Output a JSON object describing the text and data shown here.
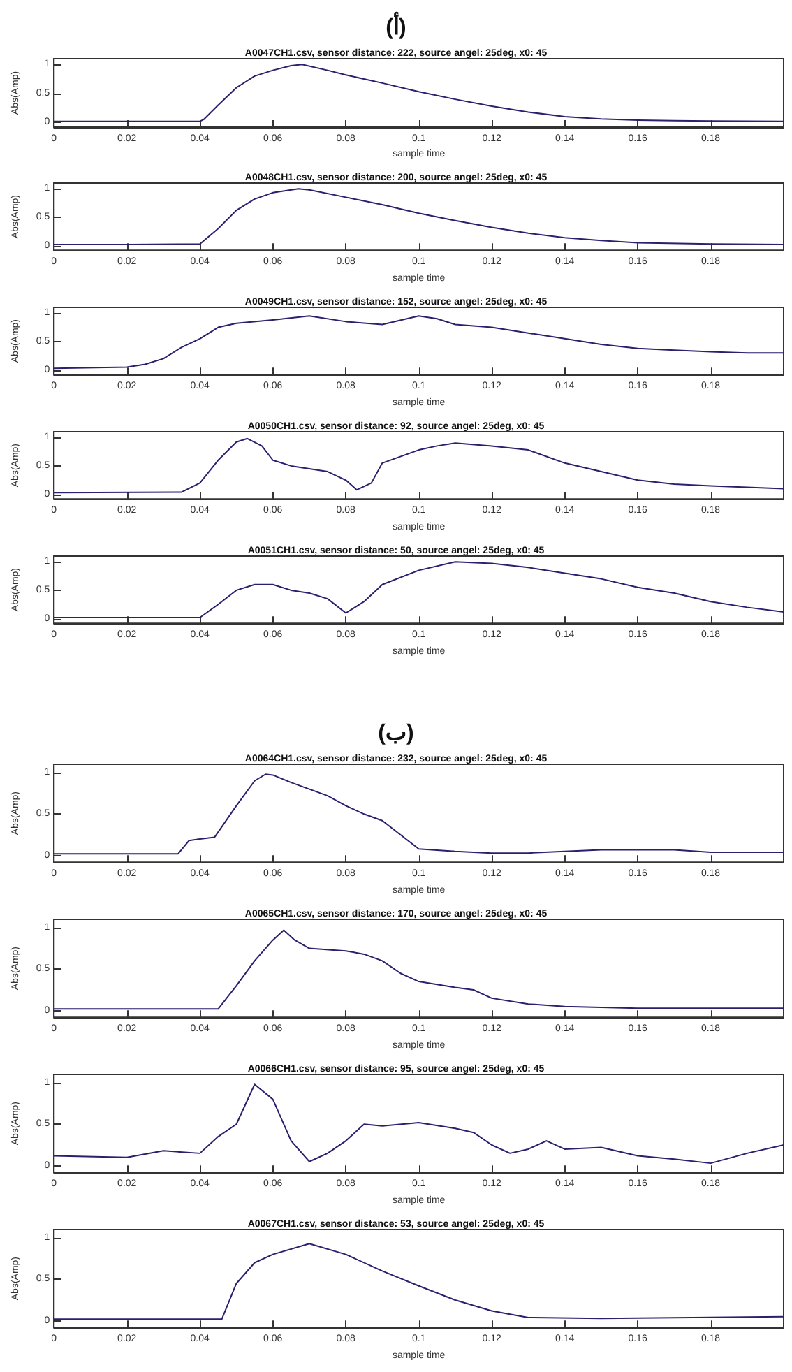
{
  "chart_data": [
    {
      "type": "line",
      "title": "A0047CH1.csv, sensor distance: 222, source angel: 25deg, x0: 45",
      "xlabel": "sample time",
      "ylabel": "Abs(Amp)",
      "annotations": [
        "(أ)"
      ],
      "xlim": [
        0,
        0.2
      ],
      "xticks": [
        0,
        0.02,
        0.04,
        0.06,
        0.08,
        0.1,
        0.12,
        0.14,
        0.16,
        0.18
      ],
      "ylim": [
        -0.08,
        1.1
      ],
      "yticks": [
        0,
        0.5,
        1
      ],
      "grid": false,
      "x": [
        0,
        0.02,
        0.04,
        0.041,
        0.045,
        0.05,
        0.055,
        0.06,
        0.065,
        0.068,
        0.075,
        0.08,
        0.09,
        0.1,
        0.11,
        0.12,
        0.13,
        0.14,
        0.15,
        0.16,
        0.17,
        0.2
      ],
      "series": [
        {
          "color": "#2b1f6e",
          "values": [
            0.02,
            0.02,
            0.02,
            0.05,
            0.3,
            0.6,
            0.8,
            0.9,
            0.98,
            1.0,
            0.9,
            0.82,
            0.68,
            0.53,
            0.4,
            0.28,
            0.18,
            0.1,
            0.06,
            0.04,
            0.03,
            0.02
          ]
        }
      ]
    },
    {
      "type": "line",
      "title": "A0048CH1.csv, sensor distance: 200, source angel: 25deg, x0: 45",
      "xlabel": "sample time",
      "ylabel": "Abs(Amp)",
      "xlim": [
        0,
        0.2
      ],
      "xticks": [
        0,
        0.02,
        0.04,
        0.06,
        0.08,
        0.1,
        0.12,
        0.14,
        0.16,
        0.18
      ],
      "ylim": [
        -0.08,
        1.1
      ],
      "yticks": [
        0,
        0.5,
        1
      ],
      "grid": false,
      "x": [
        0,
        0.02,
        0.04,
        0.045,
        0.05,
        0.055,
        0.06,
        0.067,
        0.07,
        0.08,
        0.09,
        0.1,
        0.11,
        0.12,
        0.13,
        0.14,
        0.15,
        0.16,
        0.18,
        0.2
      ],
      "series": [
        {
          "color": "#2b1f6e",
          "values": [
            0.02,
            0.02,
            0.03,
            0.3,
            0.62,
            0.82,
            0.93,
            1.0,
            0.98,
            0.85,
            0.72,
            0.57,
            0.44,
            0.32,
            0.22,
            0.14,
            0.09,
            0.05,
            0.03,
            0.02
          ]
        }
      ]
    },
    {
      "type": "line",
      "title": "A0049CH1.csv, sensor distance: 152, source angel: 25deg, x0: 45",
      "xlabel": "sample time",
      "ylabel": "Abs(Amp)",
      "xlim": [
        0,
        0.2
      ],
      "xticks": [
        0,
        0.02,
        0.04,
        0.06,
        0.08,
        0.1,
        0.12,
        0.14,
        0.16,
        0.18
      ],
      "ylim": [
        -0.08,
        1.1
      ],
      "yticks": [
        0,
        0.5,
        1
      ],
      "grid": false,
      "x": [
        0,
        0.02,
        0.025,
        0.03,
        0.035,
        0.04,
        0.045,
        0.05,
        0.06,
        0.07,
        0.08,
        0.09,
        0.1,
        0.105,
        0.11,
        0.12,
        0.13,
        0.14,
        0.15,
        0.16,
        0.17,
        0.18,
        0.19,
        0.2
      ],
      "series": [
        {
          "color": "#2b1f6e",
          "values": [
            0.03,
            0.05,
            0.1,
            0.2,
            0.4,
            0.55,
            0.75,
            0.82,
            0.88,
            0.95,
            0.85,
            0.8,
            0.95,
            0.9,
            0.8,
            0.75,
            0.65,
            0.55,
            0.45,
            0.38,
            0.35,
            0.32,
            0.3,
            0.3
          ]
        }
      ]
    },
    {
      "type": "line",
      "title": "A0050CH1.csv, sensor distance: 92, source angel: 25deg, x0: 45",
      "xlabel": "sample time",
      "ylabel": "Abs(Amp)",
      "xlim": [
        0,
        0.2
      ],
      "xticks": [
        0,
        0.02,
        0.04,
        0.06,
        0.08,
        0.1,
        0.12,
        0.14,
        0.16,
        0.18
      ],
      "ylim": [
        -0.08,
        1.1
      ],
      "yticks": [
        0,
        0.5,
        1
      ],
      "grid": false,
      "x": [
        0,
        0.035,
        0.04,
        0.045,
        0.05,
        0.053,
        0.057,
        0.06,
        0.065,
        0.07,
        0.075,
        0.08,
        0.083,
        0.087,
        0.09,
        0.1,
        0.105,
        0.11,
        0.12,
        0.13,
        0.14,
        0.15,
        0.16,
        0.17,
        0.18,
        0.2
      ],
      "series": [
        {
          "color": "#2b1f6e",
          "values": [
            0.03,
            0.04,
            0.2,
            0.6,
            0.92,
            0.98,
            0.85,
            0.6,
            0.5,
            0.45,
            0.4,
            0.25,
            0.08,
            0.2,
            0.55,
            0.78,
            0.85,
            0.9,
            0.85,
            0.78,
            0.55,
            0.4,
            0.25,
            0.18,
            0.15,
            0.1
          ]
        }
      ]
    },
    {
      "type": "line",
      "title": "A0051CH1.csv, sensor distance: 50, source angel: 25deg, x0: 45",
      "xlabel": "sample time",
      "ylabel": "Abs(Amp)",
      "xlim": [
        0,
        0.2
      ],
      "xticks": [
        0,
        0.02,
        0.04,
        0.06,
        0.08,
        0.1,
        0.12,
        0.14,
        0.16,
        0.18
      ],
      "ylim": [
        -0.08,
        1.1
      ],
      "yticks": [
        0,
        0.5,
        1
      ],
      "grid": false,
      "x": [
        0,
        0.04,
        0.045,
        0.05,
        0.055,
        0.06,
        0.065,
        0.07,
        0.075,
        0.08,
        0.085,
        0.09,
        0.1,
        0.11,
        0.12,
        0.13,
        0.14,
        0.15,
        0.16,
        0.17,
        0.18,
        0.19,
        0.2
      ],
      "series": [
        {
          "color": "#2b1f6e",
          "values": [
            0.02,
            0.02,
            0.25,
            0.5,
            0.6,
            0.6,
            0.5,
            0.45,
            0.35,
            0.1,
            0.3,
            0.6,
            0.85,
            1.0,
            0.97,
            0.9,
            0.8,
            0.7,
            0.55,
            0.45,
            0.3,
            0.2,
            0.12
          ]
        }
      ]
    },
    {
      "type": "line",
      "title": "A0064CH1.csv, sensor distance: 232, source angel: 25deg, x0: 45",
      "xlabel": "sample time",
      "ylabel": "Abs(Amp)",
      "annotations": [
        "(ب)"
      ],
      "xlim": [
        0,
        0.2
      ],
      "xticks": [
        0,
        0.02,
        0.04,
        0.06,
        0.08,
        0.1,
        0.12,
        0.14,
        0.16,
        0.18
      ],
      "ylim": [
        -0.08,
        1.1
      ],
      "yticks": [
        0,
        0.5,
        1
      ],
      "grid": false,
      "x": [
        0,
        0.034,
        0.037,
        0.04,
        0.044,
        0.05,
        0.055,
        0.058,
        0.06,
        0.065,
        0.07,
        0.075,
        0.08,
        0.085,
        0.09,
        0.095,
        0.1,
        0.11,
        0.12,
        0.13,
        0.14,
        0.15,
        0.16,
        0.17,
        0.18,
        0.2
      ],
      "series": [
        {
          "color": "#2b1f6e",
          "values": [
            0.02,
            0.02,
            0.18,
            0.2,
            0.22,
            0.6,
            0.9,
            0.98,
            0.97,
            0.88,
            0.8,
            0.72,
            0.6,
            0.5,
            0.42,
            0.25,
            0.08,
            0.05,
            0.03,
            0.03,
            0.05,
            0.07,
            0.07,
            0.07,
            0.04,
            0.04
          ]
        }
      ]
    },
    {
      "type": "line",
      "title": "A0065CH1.csv, sensor distance: 170, source angel: 25deg, x0: 45",
      "xlabel": "sample time",
      "ylabel": "Abs(Amp)",
      "xlim": [
        0,
        0.2
      ],
      "xticks": [
        0,
        0.02,
        0.04,
        0.06,
        0.08,
        0.1,
        0.12,
        0.14,
        0.16,
        0.18
      ],
      "ylim": [
        -0.08,
        1.1
      ],
      "yticks": [
        0,
        0.5,
        1
      ],
      "grid": false,
      "x": [
        0,
        0.045,
        0.05,
        0.055,
        0.06,
        0.063,
        0.066,
        0.07,
        0.08,
        0.085,
        0.09,
        0.095,
        0.1,
        0.11,
        0.115,
        0.12,
        0.13,
        0.14,
        0.16,
        0.2
      ],
      "series": [
        {
          "color": "#2b1f6e",
          "values": [
            0.02,
            0.02,
            0.3,
            0.6,
            0.85,
            0.97,
            0.85,
            0.75,
            0.72,
            0.68,
            0.6,
            0.45,
            0.35,
            0.28,
            0.25,
            0.15,
            0.08,
            0.05,
            0.03,
            0.03
          ]
        }
      ]
    },
    {
      "type": "line",
      "title": "A0066CH1.csv, sensor distance: 95, source angel: 25deg, x0: 45",
      "xlabel": "sample time",
      "ylabel": "Abs(Amp)",
      "xlim": [
        0,
        0.2
      ],
      "xticks": [
        0,
        0.02,
        0.04,
        0.06,
        0.08,
        0.1,
        0.12,
        0.14,
        0.16,
        0.18
      ],
      "ylim": [
        -0.08,
        1.1
      ],
      "yticks": [
        0,
        0.5,
        1
      ],
      "grid": false,
      "x": [
        0,
        0.02,
        0.03,
        0.04,
        0.045,
        0.05,
        0.055,
        0.06,
        0.065,
        0.07,
        0.075,
        0.08,
        0.085,
        0.09,
        0.1,
        0.11,
        0.115,
        0.12,
        0.125,
        0.13,
        0.135,
        0.14,
        0.15,
        0.16,
        0.17,
        0.18,
        0.19,
        0.2
      ],
      "series": [
        {
          "color": "#2b1f6e",
          "values": [
            0.12,
            0.1,
            0.18,
            0.15,
            0.35,
            0.5,
            0.98,
            0.8,
            0.3,
            0.05,
            0.15,
            0.3,
            0.5,
            0.48,
            0.52,
            0.45,
            0.4,
            0.25,
            0.15,
            0.2,
            0.3,
            0.2,
            0.22,
            0.12,
            0.08,
            0.03,
            0.15,
            0.25
          ]
        }
      ]
    },
    {
      "type": "line",
      "title": "A0067CH1.csv, sensor distance: 53, source angel: 25deg, x0: 45",
      "xlabel": "sample time",
      "ylabel": "Abs(Amp)",
      "xlim": [
        0,
        0.2
      ],
      "xticks": [
        0,
        0.02,
        0.04,
        0.06,
        0.08,
        0.1,
        0.12,
        0.14,
        0.16,
        0.18
      ],
      "ylim": [
        -0.08,
        1.1
      ],
      "yticks": [
        0,
        0.5,
        1
      ],
      "grid": false,
      "x": [
        0,
        0.046,
        0.05,
        0.055,
        0.06,
        0.07,
        0.08,
        0.09,
        0.1,
        0.11,
        0.12,
        0.13,
        0.15,
        0.2
      ],
      "series": [
        {
          "color": "#2b1f6e",
          "values": [
            0.02,
            0.02,
            0.45,
            0.7,
            0.8,
            0.93,
            0.8,
            0.6,
            0.42,
            0.25,
            0.12,
            0.04,
            0.03,
            0.05
          ]
        }
      ]
    }
  ]
}
